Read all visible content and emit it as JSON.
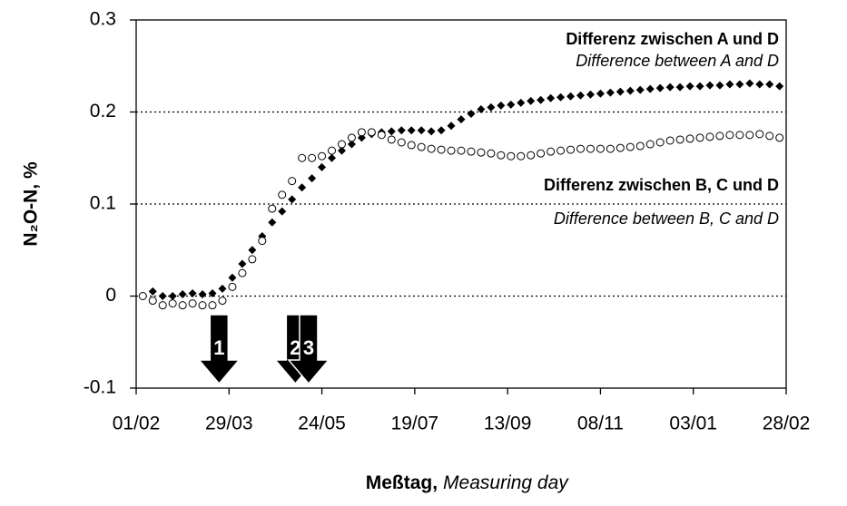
{
  "chart_data": {
    "type": "scatter",
    "y_label": "N₂O-N, %",
    "x_label": "Meßtag,",
    "x_label_en": "Measuring day",
    "xlim": [
      0,
      392
    ],
    "xticks": [
      {
        "value": 0,
        "label": "01/02"
      },
      {
        "value": 56,
        "label": "29/03"
      },
      {
        "value": 112,
        "label": "24/05"
      },
      {
        "value": 168,
        "label": "19/07"
      },
      {
        "value": 224,
        "label": "13/09"
      },
      {
        "value": 280,
        "label": "08/11"
      },
      {
        "value": 336,
        "label": "03/01"
      },
      {
        "value": 392,
        "label": "28/02"
      }
    ],
    "ylim": [
      -0.1,
      0.3
    ],
    "yticks": [
      0.3,
      0.2,
      0.1,
      0,
      -0.1
    ],
    "grid": true,
    "x": [
      4,
      10,
      16,
      22,
      28,
      34,
      40,
      46,
      52,
      58,
      64,
      70,
      76,
      82,
      88,
      94,
      100,
      106,
      112,
      118,
      124,
      130,
      136,
      142,
      148,
      154,
      160,
      166,
      172,
      178,
      184,
      190,
      196,
      202,
      208,
      214,
      220,
      226,
      232,
      238,
      244,
      250,
      256,
      262,
      268,
      274,
      280,
      286,
      292,
      298,
      304,
      310,
      316,
      322,
      328,
      334,
      340,
      346,
      352,
      358,
      364,
      370,
      376,
      382,
      388
    ],
    "series": [
      {
        "name": "Differenz zwischen A und D",
        "name_en": "Difference between A and D",
        "marker": "diamond",
        "color": "#000000",
        "values": [
          0,
          0.005,
          0,
          0,
          0.002,
          0.003,
          0.002,
          0.003,
          0.008,
          0.02,
          0.035,
          0.05,
          0.065,
          0.08,
          0.092,
          0.105,
          0.118,
          0.128,
          0.14,
          0.15,
          0.158,
          0.165,
          0.172,
          0.176,
          0.178,
          0.179,
          0.18,
          0.18,
          0.18,
          0.179,
          0.18,
          0.185,
          0.192,
          0.198,
          0.203,
          0.205,
          0.207,
          0.208,
          0.21,
          0.212,
          0.213,
          0.215,
          0.216,
          0.217,
          0.218,
          0.219,
          0.22,
          0.221,
          0.222,
          0.223,
          0.224,
          0.225,
          0.226,
          0.227,
          0.227,
          0.228,
          0.228,
          0.229,
          0.229,
          0.23,
          0.23,
          0.231,
          0.23,
          0.23,
          0.228
        ]
      },
      {
        "name": "Differenz zwischen B, C und D",
        "name_en": "Difference between B, C and D",
        "marker": "circle",
        "color": "#000000",
        "values": [
          0,
          -0.005,
          -0.01,
          -0.008,
          -0.01,
          -0.008,
          -0.01,
          -0.01,
          -0.005,
          0.01,
          0.025,
          0.04,
          0.06,
          0.095,
          0.11,
          0.125,
          0.15,
          0.15,
          0.152,
          0.158,
          0.165,
          0.172,
          0.178,
          0.178,
          0.175,
          0.17,
          0.167,
          0.164,
          0.162,
          0.16,
          0.159,
          0.158,
          0.158,
          0.157,
          0.156,
          0.155,
          0.153,
          0.152,
          0.152,
          0.153,
          0.155,
          0.157,
          0.158,
          0.159,
          0.16,
          0.16,
          0.16,
          0.16,
          0.161,
          0.162,
          0.163,
          0.165,
          0.167,
          0.169,
          0.17,
          0.171,
          0.172,
          0.173,
          0.174,
          0.175,
          0.175,
          0.175,
          0.176,
          0.174,
          0.172
        ]
      }
    ],
    "arrows": [
      {
        "label": "1",
        "x": 50
      },
      {
        "label": "2",
        "x": 96
      },
      {
        "label": "3",
        "x": 104
      }
    ]
  }
}
